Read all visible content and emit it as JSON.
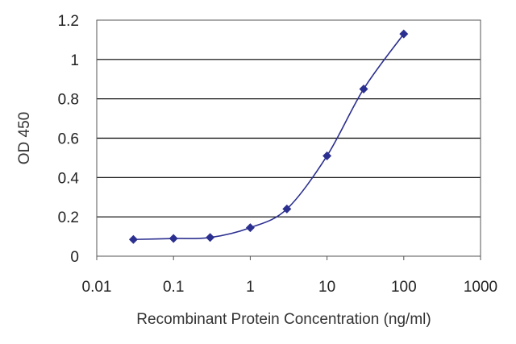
{
  "chart_data": {
    "type": "scatter",
    "xscale": "log",
    "xlabel": "Recombinant Protein Concentration (ng/ml)",
    "ylabel": "OD 450",
    "xlim": [
      0.01,
      1000
    ],
    "ylim": [
      0,
      1.2
    ],
    "x_ticks": [
      "0.01",
      "0.1",
      "1",
      "10",
      "100",
      "1000"
    ],
    "y_ticks": [
      "0",
      "0.2",
      "0.4",
      "0.6",
      "0.8",
      "1",
      "1.2"
    ],
    "grid": "horizontal",
    "colors": {
      "series": "#2b2f8f",
      "grid": "#000000",
      "frame": "#555555"
    },
    "series": [
      {
        "x": [
          0.03,
          0.1,
          0.3,
          1,
          3,
          10,
          30,
          100
        ],
        "y": [
          0.085,
          0.09,
          0.095,
          0.145,
          0.24,
          0.51,
          0.85,
          1.13
        ]
      }
    ]
  }
}
